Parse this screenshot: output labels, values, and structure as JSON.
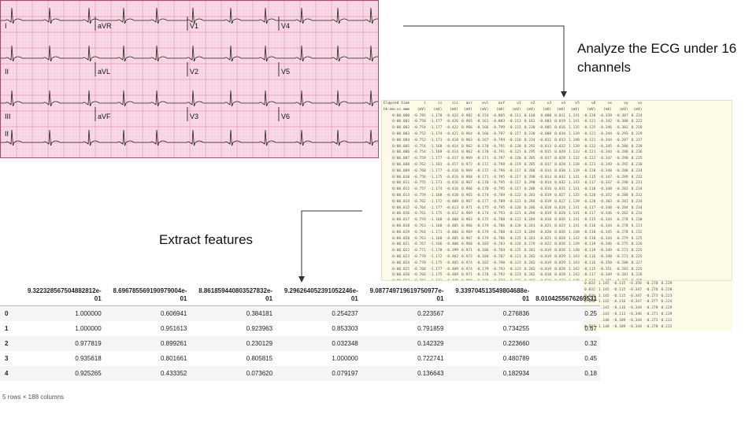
{
  "captions": {
    "analyze": "Analyze the ECG under 16 channels",
    "extract": "Extract features"
  },
  "ecg": {
    "leads": [
      "I",
      "aVR",
      "V1",
      "V4",
      "II",
      "aVL",
      "V2",
      "V5",
      "III",
      "aVF",
      "V3",
      "V6",
      "II"
    ]
  },
  "raw_table": {
    "headers": [
      "Elapsed time",
      "i",
      "ii",
      "iii",
      "avr",
      "avl",
      "avf",
      "v1",
      "v2",
      "v3",
      "v4",
      "v5",
      "v6",
      "vx",
      "vy",
      "vz"
    ],
    "units": [
      "hh:mm:ss.mmm",
      "(mV)",
      "(mV)",
      "(mV)",
      "(mV)",
      "(mV)",
      "(mV)",
      "(mV)",
      "(mV)",
      "(mV)",
      "(mV)",
      "(mV)",
      "(mV)",
      "(mV)",
      "(mV)",
      "(mV)"
    ],
    "rows": [
      [
        "0:00.000",
        "-0.785",
        "-1.170",
        "-0.432",
        "0.982",
        "-0.154",
        "-0.805",
        "-0.111",
        "0.160",
        "0.000",
        "0.011",
        "1.141",
        "-0.120",
        "-0.339",
        "-0.307",
        "0.224"
      ],
      [
        "0:00.001",
        "-0.750",
        "-1.177",
        "-0.426",
        "0.965",
        "-0.161",
        "-0.803",
        "-0.113",
        "0.162",
        "-0.003",
        "0.019",
        "1.141",
        "-0.121",
        "-0.342",
        "-0.300",
        "0.222"
      ],
      [
        "0:00.002",
        "-0.754",
        "-1.177",
        "-0.422",
        "0.966",
        "-0.166",
        "-0.799",
        "-0.115",
        "0.230",
        "-0.005",
        "0.016",
        "1.135",
        "-0.125",
        "-0.346",
        "-0.302",
        "0.218"
      ],
      [
        "0:00.003",
        "-0.752",
        "-1.174",
        "-0.421",
        "0.964",
        "-0.166",
        "-0.797",
        "-0.117",
        "0.230",
        "-0.008",
        "0.034",
        "1.139",
        "-0.121",
        "-0.344",
        "-0.293",
        "0.229"
      ],
      [
        "0:00.004",
        "-0.752",
        "-1.171",
        "-0.418",
        "0.963",
        "-0.167",
        "-0.794",
        "-0.118",
        "0.234",
        "-0.011",
        "0.033",
        "1.140",
        "-0.121",
        "-0.344",
        "-0.287",
        "0.237"
      ],
      [
        "0:00.005",
        "-0.754",
        "-1.168",
        "-0.414",
        "0.962",
        "-0.170",
        "-0.791",
        "-0.120",
        "0.292",
        "-0.013",
        "0.032",
        "1.139",
        "-0.122",
        "-0.345",
        "-0.286",
        "0.239"
      ],
      [
        "0:00.006",
        "-0.754",
        "-1.169",
        "-0.414",
        "0.962",
        "-0.170",
        "-0.791",
        "-0.121",
        "0.295",
        "-0.015",
        "0.029",
        "1.133",
        "-0.121",
        "-0.344",
        "-0.288",
        "0.236"
      ],
      [
        "0:00.007",
        "-0.759",
        "-1.177",
        "-0.417",
        "0.969",
        "-0.171",
        "-0.797",
        "-0.120",
        "0.285",
        "-0.017",
        "0.028",
        "1.132",
        "-0.122",
        "-0.347",
        "-0.290",
        "0.235"
      ],
      [
        "0:00.008",
        "-0.762",
        "-1.181",
        "-0.417",
        "0.972",
        "-0.172",
        "-0.798",
        "-0.119",
        "0.285",
        "-0.017",
        "0.028",
        "1.138",
        "-0.123",
        "-0.349",
        "-0.292",
        "0.230"
      ],
      [
        "0:00.009",
        "-0.760",
        "-1.177",
        "-0.416",
        "0.969",
        "-0.172",
        "-0.796",
        "-0.117",
        "0.288",
        "-0.014",
        "0.030",
        "1.139",
        "-0.120",
        "-0.348",
        "-0.288",
        "0.234"
      ],
      [
        "0:00.010",
        "-0.758",
        "-1.175",
        "-0.416",
        "0.968",
        "-0.171",
        "-0.795",
        "-0.117",
        "0.290",
        "-0.013",
        "0.032",
        "1.141",
        "-0.115",
        "-0.347",
        "-0.289",
        "0.232"
      ],
      [
        "0:00.011",
        "-0.755",
        "-1.173",
        "-0.416",
        "0.967",
        "-0.170",
        "-0.795",
        "-0.117",
        "0.290",
        "-0.014",
        "0.032",
        "1.143",
        "-0.117",
        "-0.347",
        "-0.290",
        "0.231"
      ],
      [
        "0:00.012",
        "-0.757",
        "-1.174",
        "-0.416",
        "0.966",
        "-0.170",
        "-0.795",
        "-0.117",
        "0.288",
        "-0.016",
        "0.031",
        "1.141",
        "-0.118",
        "-0.348",
        "-0.283",
        "0.234"
      ],
      [
        "0:00.013",
        "-0.759",
        "-1.168",
        "-0.410",
        "0.965",
        "-0.174",
        "-0.789",
        "-0.122",
        "0.283",
        "-0.019",
        "0.027",
        "1.135",
        "-0.120",
        "-0.352",
        "-0.280",
        "0.232"
      ],
      [
        "0:00.014",
        "-0.762",
        "-1.172",
        "-0.408",
        "0.967",
        "-0.177",
        "-0.789",
        "-0.121",
        "0.284",
        "-0.019",
        "0.027",
        "1.139",
        "-0.120",
        "-0.303",
        "-0.281",
        "0.234"
      ],
      [
        "0:00.015",
        "-0.764",
        "-1.177",
        "-0.413",
        "0.971",
        "-0.175",
        "-0.795",
        "-0.120",
        "0.286",
        "-0.018",
        "0.028",
        "1.141",
        "-0.117",
        "-0.348",
        "-0.284",
        "0.234"
      ],
      [
        "0:00.016",
        "-0.761",
        "-1.175",
        "-0.412",
        "0.969",
        "-0.174",
        "-0.793",
        "-0.121",
        "0.284",
        "-0.019",
        "0.028",
        "1.141",
        "-0.117",
        "-0.346",
        "-0.282",
        "0.234"
      ],
      [
        "0:00.017",
        "-0.759",
        "-1.168",
        "-0.408",
        "0.963",
        "-0.175",
        "-0.788",
        "-0.122",
        "0.284",
        "-0.018",
        "0.026",
        "1.141",
        "-0.115",
        "-0.344",
        "-0.278",
        "0.230"
      ],
      [
        "0:00.018",
        "-0.763",
        "-1.168",
        "-0.405",
        "0.966",
        "-0.179",
        "-0.786",
        "-0.126",
        "0.281",
        "-0.021",
        "0.025",
        "1.141",
        "-0.116",
        "-0.344",
        "-0.278",
        "0.231"
      ],
      [
        "0:00.019",
        "-0.764",
        "-1.171",
        "-0.406",
        "0.969",
        "-0.179",
        "-0.788",
        "-0.123",
        "0.284",
        "-0.020",
        "0.026",
        "1.140",
        "-0.118",
        "-0.345",
        "-0.278",
        "0.232"
      ],
      [
        "0:00.020",
        "-0.763",
        "-1.168",
        "-0.405",
        "0.967",
        "-0.179",
        "-0.786",
        "-0.125",
        "0.281",
        "-0.021",
        "0.028",
        "1.142",
        "-0.118",
        "-0.344",
        "-0.279",
        "0.225"
      ],
      [
        "0:00.021",
        "-0.767",
        "-1.166",
        "-0.400",
        "0.968",
        "-0.183",
        "-0.783",
        "-0.124",
        "0.279",
        "-0.022",
        "0.026",
        "1.139",
        "-0.119",
        "-0.346",
        "-0.275",
        "0.226"
      ],
      [
        "0:00.022",
        "-0.771",
        "-1.170",
        "-0.399",
        "0.971",
        "-0.186",
        "-0.784",
        "-0.125",
        "0.281",
        "-0.019",
        "0.026",
        "1.140",
        "-0.119",
        "-0.349",
        "-0.273",
        "0.225"
      ],
      [
        "0:00.023",
        "-0.770",
        "-1.172",
        "-0.402",
        "0.972",
        "-0.184",
        "-0.787",
        "-0.121",
        "0.283",
        "-0.019",
        "0.029",
        "1.143",
        "-0.116",
        "-0.348",
        "-0.273",
        "0.225"
      ],
      [
        "0:00.024",
        "-0.770",
        "-1.175",
        "-0.405",
        "0.974",
        "-0.182",
        "-0.790",
        "-0.123",
        "0.283",
        "-0.019",
        "0.029",
        "1.143",
        "-0.116",
        "-0.350",
        "-0.280",
        "0.227"
      ],
      [
        "0:00.025",
        "-0.768",
        "-1.177",
        "-0.409",
        "0.974",
        "-0.179",
        "-0.793",
        "-0.123",
        "0.283",
        "-0.019",
        "0.028",
        "1.142",
        "-0.115",
        "-0.351",
        "-0.283",
        "0.225"
      ],
      [
        "0:00.026",
        "-0.766",
        "-1.175",
        "-0.409",
        "0.971",
        "-0.178",
        "-0.792",
        "-0.123",
        "0.282",
        "-0.018",
        "0.028",
        "1.142",
        "-0.117",
        "-0.349",
        "-0.281",
        "0.226"
      ],
      [
        "0:00.027",
        "-0.766",
        "-1.171",
        "-0.405",
        "0.969",
        "-0.180",
        "-0.787",
        "-0.121",
        "0.282",
        "-0.018",
        "0.032",
        "1.145",
        "-0.118",
        "-0.351",
        "-0.273",
        "0.225"
      ],
      [
        "0:00.028",
        "-0.762",
        "-1.168",
        "-0.403",
        "0.965",
        "-0.179",
        "-0.784",
        "-0.121",
        "0.283",
        "-0.016",
        "0.033",
        "1.145",
        "-0.118",
        "-0.351",
        "-0.270",
        "0.228"
      ]
    ],
    "overflow_rows": [
      [
        "0.033",
        "1.145",
        "-0.115",
        "-0.350",
        "-0.270",
        "0.229"
      ],
      [
        "0.032",
        "1.145",
        "-0.115",
        "-0.347",
        "-0.270",
        "0.228"
      ],
      [
        "0.030",
        "1.145",
        "-0.115",
        "-0.347",
        "-0.273",
        "0.223"
      ],
      [
        "0.030",
        "1.142",
        "-0.116",
        "-0.347",
        "-0.277",
        "0.224"
      ],
      [
        "0.031",
        "1.142",
        "-0.116",
        "-0.344",
        "-0.270",
        "0.229"
      ],
      [
        "0.034",
        "1.143",
        "-0.113",
        "-0.346",
        "-0.271",
        "0.239"
      ],
      [
        "0.035",
        "1.146",
        "-0.109",
        "-0.344",
        "-0.273",
        "0.231"
      ],
      [
        "0.037",
        "1.148",
        "-0.109",
        "-0.344",
        "-0.270",
        "0.232"
      ]
    ]
  },
  "features_table": {
    "columns": [
      "9.322328567504882812e-01",
      "8.696785569190979004e-01",
      "8.861859440803527832e-01",
      "9.296264052391052246e-01",
      "9.087749719619750977e-01",
      "9.339704513549804688e-01",
      "8.0104255676269531"
    ],
    "rows": [
      {
        "index": "0",
        "values": [
          "1.000000",
          "0.606941",
          "0.384181",
          "0.254237",
          "0.223567",
          "0.276836",
          "0.25"
        ]
      },
      {
        "index": "1",
        "values": [
          "1.000000",
          "0.951613",
          "0.923963",
          "0.853303",
          "0.791859",
          "0.734255",
          "0.67"
        ]
      },
      {
        "index": "2",
        "values": [
          "0.977819",
          "0.899261",
          "0.230129",
          "0.032348",
          "0.142329",
          "0.223660",
          "0.32"
        ]
      },
      {
        "index": "3",
        "values": [
          "0.935618",
          "0.801661",
          "0.805815",
          "1.000000",
          "0.722741",
          "0.480789",
          "0.45"
        ]
      },
      {
        "index": "4",
        "values": [
          "0.925265",
          "0.433352",
          "0.073620",
          "0.079197",
          "0.136643",
          "0.182934",
          "0.18"
        ]
      }
    ],
    "shape_note": "5 rows × 188 columns"
  },
  "colors": {
    "ecg_paper": "#f9dbe8",
    "ecg_grid_minor": "#f2bcd1",
    "ecg_grid_major": "#e493b3",
    "ecg_trace": "#222222",
    "connector": "#333333",
    "table_bg": "#fdfbe8"
  }
}
